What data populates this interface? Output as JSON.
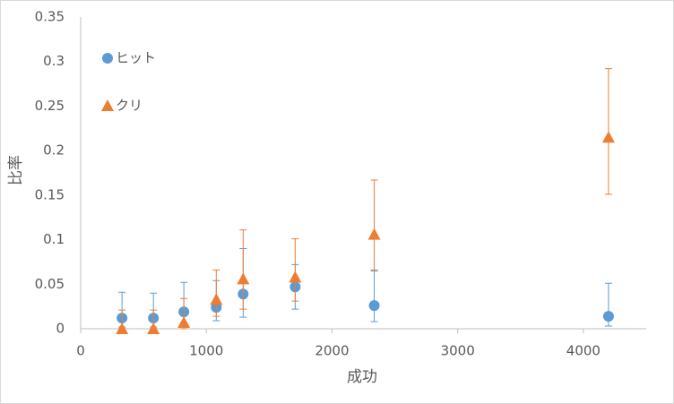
{
  "chart_data": {
    "type": "scatter",
    "x_label": "成功",
    "y_label": "比率",
    "xlim": [
      0,
      4500
    ],
    "xticks": [
      0,
      1000,
      2000,
      3000,
      4000
    ],
    "ylim": [
      0,
      0.35
    ],
    "yticks": [
      0,
      0.05,
      0.1,
      0.15,
      0.2,
      0.25,
      0.3,
      0.35
    ],
    "grid": false,
    "series": [
      {
        "name": "ヒット",
        "color": "#5b9bd5",
        "marker": "circle",
        "x": [
          329,
          579,
          821,
          1079,
          1293,
          1707,
          2336,
          4200
        ],
        "values": [
          0.012,
          0.012,
          0.019,
          0.024,
          0.039,
          0.047,
          0.026,
          0.014
        ],
        "err_plus": [
          0.029,
          0.028,
          0.033,
          0.03,
          0.051,
          0.025,
          0.039,
          0.037
        ],
        "err_minus": [
          0.01,
          0.01,
          0.012,
          0.015,
          0.026,
          0.025,
          0.018,
          0.011
        ]
      },
      {
        "name": "クリ",
        "color": "#ed7d31",
        "marker": "triangle",
        "x": [
          329,
          579,
          821,
          1079,
          1293,
          1707,
          2336,
          4200
        ],
        "values": [
          0.0,
          0.0,
          0.007,
          0.033,
          0.056,
          0.058,
          0.106,
          0.215
        ],
        "err_plus": [
          0.021,
          0.021,
          0.027,
          0.033,
          0.055,
          0.043,
          0.061,
          0.077
        ],
        "err_minus": [
          0.0,
          0.0,
          0.007,
          0.019,
          0.034,
          0.027,
          0.04,
          0.064
        ]
      }
    ]
  }
}
